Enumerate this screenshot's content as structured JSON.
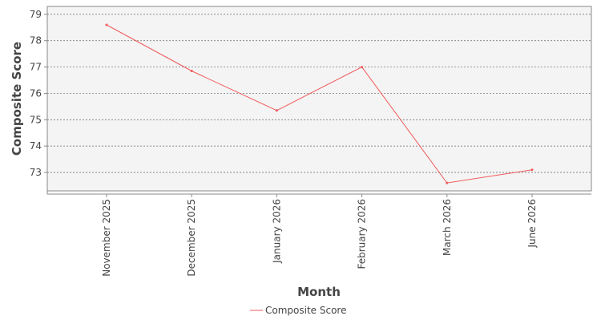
{
  "chart_data": {
    "type": "line",
    "title": "",
    "xlabel": "Month",
    "ylabel": "Composite Score",
    "categories": [
      "November 2025",
      "December 2025",
      "January 2026",
      "February 2026",
      "March 2026",
      "June 2026"
    ],
    "series": [
      {
        "name": "Composite Score",
        "values": [
          78.6,
          76.85,
          75.35,
          77.0,
          72.6,
          73.1
        ],
        "color": "#f05a5a"
      }
    ],
    "ylim": [
      72.3,
      79.3
    ],
    "yticks": [
      73,
      74,
      75,
      76,
      77,
      78,
      79
    ],
    "grid": true,
    "legend_position": "bottom-center",
    "colors": {
      "plot_background": "#f4f4f4",
      "grid": "#666666",
      "axis": "#888888"
    }
  }
}
